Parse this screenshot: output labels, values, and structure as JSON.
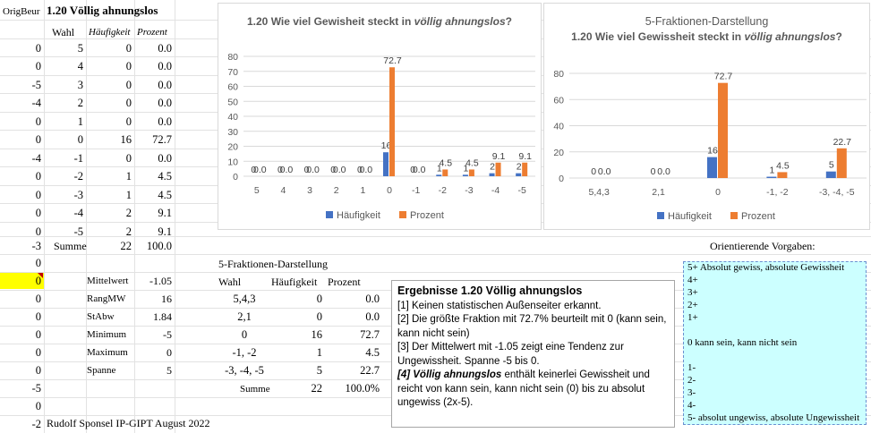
{
  "header": {
    "col_a": "OrigBeur",
    "title": "1.20  Völlig ahnungslos"
  },
  "freq_table": {
    "headers": [
      "Wahl",
      "Häufigkeit",
      "Prozent"
    ],
    "rows": [
      {
        "orig": "0",
        "wahl": "5",
        "h": "0",
        "p": "0.0"
      },
      {
        "orig": "0",
        "wahl": "4",
        "h": "0",
        "p": "0.0"
      },
      {
        "orig": "-5",
        "wahl": "3",
        "h": "0",
        "p": "0.0"
      },
      {
        "orig": "-4",
        "wahl": "2",
        "h": "0",
        "p": "0.0"
      },
      {
        "orig": "0",
        "wahl": "1",
        "h": "0",
        "p": "0.0"
      },
      {
        "orig": "0",
        "wahl": "0",
        "h": "16",
        "p": "72.7"
      },
      {
        "orig": "-4",
        "wahl": "-1",
        "h": "0",
        "p": "0.0"
      },
      {
        "orig": "0",
        "wahl": "-2",
        "h": "1",
        "p": "4.5"
      },
      {
        "orig": "0",
        "wahl": "-3",
        "h": "1",
        "p": "4.5"
      },
      {
        "orig": "0",
        "wahl": "-4",
        "h": "2",
        "p": "9.1"
      },
      {
        "orig": "0",
        "wahl": "-5",
        "h": "2",
        "p": "9.1"
      }
    ],
    "summe": {
      "orig": "-3",
      "label": "Summe",
      "h": "22",
      "p": "100.0"
    }
  },
  "col_a_rest": [
    "0",
    "0",
    "0",
    "0",
    "0",
    "0",
    "0",
    "-5",
    "0",
    "-2"
  ],
  "stats": [
    {
      "label": "Mittelwert",
      "value": "-1.05"
    },
    {
      "label": "RangMW",
      "value": "16"
    },
    {
      "label": "StAbw",
      "value": "1.84"
    },
    {
      "label": "Minimum",
      "value": "-5"
    },
    {
      "label": "Maximum",
      "value": "0"
    },
    {
      "label": "Spanne",
      "value": "5"
    }
  ],
  "footer": "Rudolf Sponsel IP-GIPT August 2022",
  "five_frac": {
    "title": "5-Fraktionen-Darstellung",
    "headers": [
      "Wahl",
      "Häufigkeit",
      "Prozent"
    ],
    "rows": [
      {
        "wahl": "5,4,3",
        "h": "0",
        "p": "0.0"
      },
      {
        "wahl": "2,1",
        "h": "0",
        "p": "0.0"
      },
      {
        "wahl": "0",
        "h": "16",
        "p": "72.7"
      },
      {
        "wahl": "-1, -2",
        "h": "1",
        "p": "4.5"
      },
      {
        "wahl": "-3, -4, -5",
        "h": "5",
        "p": "22.7"
      }
    ],
    "summe": {
      "label": "Summe",
      "h": "22",
      "p": "100.0%"
    }
  },
  "results": {
    "title": "Ergebnisse 1.20  Völlig ahnungslos",
    "lines": [
      "[1] Keinen statistischen Außenseiter erkannt.",
      "[2] Die größte Fraktion mit 72.7% beurteilt mit 0 (kann sein, kann nicht sein)",
      "[3] Der Mittelwert mit -1.05 zeigt eine Tendenz zur Ungewissheit. Spanne -5 bis 0."
    ],
    "line4_bold": "[4] Völlig ahnungslos",
    "line4_rest": " enthält keinerlei Gewissheit und reicht von kann sein, kann nicht sein (0) bis zu absolut ungewiss (2x-5)."
  },
  "vorgaben": {
    "title": "Orientierende Vorgaben:",
    "lines": [
      "5+ Absolut gewiss, absolute Gewissheit",
      "4+",
      "3+",
      "2+",
      "1+",
      "0   kann sein, kann nicht sein",
      "1-",
      "2-",
      "3-",
      "4-",
      "5- absolut ungewiss, absolute Ungewissheit"
    ]
  },
  "legend": {
    "s1": "Häufigkeit",
    "s2": "Prozent"
  },
  "colors": {
    "haeufigkeit": "#4472c4",
    "prozent": "#ed7d31",
    "highlight": "#ffff00",
    "vorgaben_bg": "#ccffff"
  },
  "chart_data": [
    {
      "type": "bar",
      "title_plain": "1.20 Wie viel Gewisheit steckt in ",
      "title_italic": "völlig ahnungslos",
      "title_end": "?",
      "categories": [
        "5",
        "4",
        "3",
        "2",
        "1",
        "0",
        "-1",
        "-2",
        "-3",
        "-4",
        "-5"
      ],
      "series": [
        {
          "name": "Häufigkeit",
          "values": [
            0,
            0,
            0,
            0,
            0,
            16,
            0,
            1,
            1,
            2,
            2
          ]
        },
        {
          "name": "Prozent",
          "values": [
            0.0,
            0.0,
            0.0,
            0.0,
            0.0,
            72.7,
            0.0,
            4.5,
            4.5,
            9.1,
            9.1
          ]
        }
      ],
      "ylim": [
        0,
        80
      ],
      "yticks": [
        0,
        10,
        20,
        30,
        40,
        50,
        60,
        70,
        80
      ],
      "legend": "bottom"
    },
    {
      "type": "bar",
      "title_line1": "5-Fraktionen-Darstellung",
      "title_plain": "1.20 Wie viel Gewissheit steckt in ",
      "title_italic": "völlig ahnungslos",
      "title_end": "?",
      "categories": [
        "5,4,3",
        "2,1",
        "0",
        "-1, -2",
        "-3, -4, -5"
      ],
      "series": [
        {
          "name": "Häufigkeit",
          "values": [
            0,
            0,
            16,
            1,
            5
          ]
        },
        {
          "name": "Prozent",
          "values": [
            0.0,
            0.0,
            72.7,
            4.5,
            22.7
          ]
        }
      ],
      "ylim": [
        0,
        80
      ],
      "yticks": [
        0,
        20,
        40,
        60,
        80
      ],
      "legend": "bottom"
    }
  ]
}
